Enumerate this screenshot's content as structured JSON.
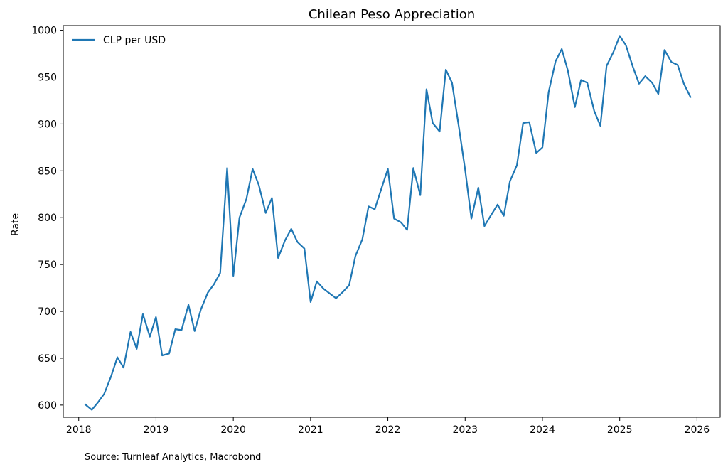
{
  "footer": {
    "source": "Source: Turnleaf Analytics, Macrobond"
  },
  "chart_data": {
    "type": "line",
    "title": "Chilean Peso Appreciation",
    "xlabel": "",
    "ylabel": "Rate",
    "xlim": [
      2017.8,
      2026.3
    ],
    "ylim": [
      587,
      1005
    ],
    "x_ticks": [
      2018,
      2019,
      2020,
      2021,
      2022,
      2023,
      2024,
      2025,
      2026
    ],
    "y_ticks": [
      600,
      650,
      700,
      750,
      800,
      850,
      900,
      950,
      1000
    ],
    "grid": false,
    "legend_position": "top-left",
    "series": [
      {
        "name": "CLP per USD",
        "color": "#1f77b4",
        "x": [
          2018.08,
          2018.17,
          2018.25,
          2018.33,
          2018.42,
          2018.5,
          2018.58,
          2018.67,
          2018.75,
          2018.83,
          2018.92,
          2019.0,
          2019.08,
          2019.17,
          2019.25,
          2019.33,
          2019.42,
          2019.5,
          2019.58,
          2019.67,
          2019.75,
          2019.83,
          2019.92,
          2020.0,
          2020.08,
          2020.17,
          2020.25,
          2020.33,
          2020.42,
          2020.5,
          2020.58,
          2020.67,
          2020.75,
          2020.83,
          2020.92,
          2021.0,
          2021.08,
          2021.17,
          2021.25,
          2021.33,
          2021.42,
          2021.5,
          2021.58,
          2021.67,
          2021.75,
          2021.83,
          2021.92,
          2022.0,
          2022.08,
          2022.17,
          2022.25,
          2022.33,
          2022.42,
          2022.5,
          2022.58,
          2022.67,
          2022.75,
          2022.83,
          2022.92,
          2023.0,
          2023.08,
          2023.17,
          2023.25,
          2023.33,
          2023.42,
          2023.5,
          2023.58,
          2023.67,
          2023.75,
          2023.83,
          2023.92,
          2024.0,
          2024.08,
          2024.17,
          2024.25,
          2024.33,
          2024.42,
          2024.5,
          2024.58,
          2024.67,
          2024.75,
          2024.83,
          2024.92,
          2025.0,
          2025.08,
          2025.17,
          2025.25,
          2025.33,
          2025.42,
          2025.5,
          2025.58,
          2025.67,
          2025.75,
          2025.83,
          2025.92
        ],
        "y": [
          601,
          595,
          603,
          612,
          631,
          651,
          640,
          678,
          660,
          697,
          673,
          694,
          653,
          655,
          681,
          680,
          707,
          679,
          702,
          720,
          729,
          741,
          853,
          738,
          800,
          820,
          852,
          835,
          805,
          821,
          757,
          776,
          788,
          774,
          767,
          710,
          732,
          724,
          719,
          714,
          721,
          728,
          759,
          777,
          812,
          809,
          832,
          852,
          799,
          795,
          787,
          853,
          824,
          937,
          901,
          892,
          958,
          944,
          896,
          851,
          799,
          832,
          791,
          802,
          814,
          802,
          839,
          856,
          901,
          902,
          869,
          875,
          934,
          967,
          980,
          957,
          918,
          947,
          944,
          914,
          898,
          962,
          977,
          994,
          984,
          961,
          943,
          951,
          944,
          932,
          979,
          966,
          963,
          943,
          928
        ]
      }
    ]
  }
}
